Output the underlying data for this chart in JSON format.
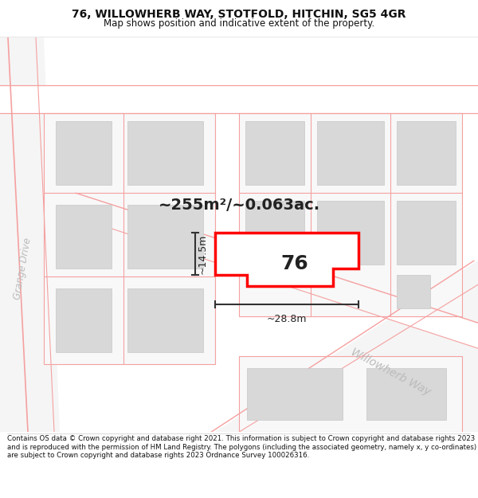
{
  "title": "76, WILLOWHERB WAY, STOTFOLD, HITCHIN, SG5 4GR",
  "subtitle": "Map shows position and indicative extent of the property.",
  "footer": "Contains OS data © Crown copyright and database right 2021. This information is subject to Crown copyright and database rights 2023 and is reproduced with the permission of HM Land Registry. The polygons (including the associated geometry, namely x, y co-ordinates) are subject to Crown copyright and database rights 2023 Ordnance Survey 100026316.",
  "area_label": "~255m²/~0.063ac.",
  "width_label": "~28.8m",
  "height_label": "~14.5m",
  "plot_number": "76",
  "street_label": "Willowherb Way",
  "road_label": "Grange Drive",
  "bg_color": "#ffffff",
  "map_bg": "#ffffff",
  "road_fill": "#ffffff",
  "plot_outline_color": "#ff0000",
  "building_fill": "#d8d8d8",
  "parcel_line_color": "#f5a0a0",
  "dim_color": "#333333",
  "street_label_color": "#bbbbbb",
  "title_color": "#111111",
  "footer_color": "#111111",
  "title_fontsize": 10,
  "subtitle_fontsize": 8.5,
  "footer_fontsize": 6.2
}
